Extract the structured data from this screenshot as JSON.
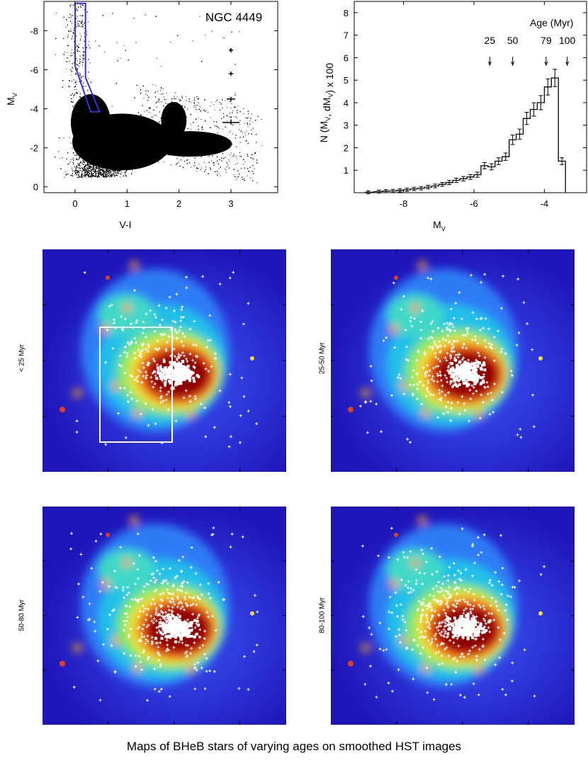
{
  "caption": "Maps of BHeB stars of varying ages on smoothed HST images",
  "chart_data": [
    {
      "type": "scatter",
      "title": "NGC 4449",
      "xlabel": "V-I",
      "ylabel": "M_V",
      "xlim": [
        -0.6,
        3.9
      ],
      "ylim": [
        0.3,
        -9.5
      ],
      "x_ticks": [
        "0",
        "1",
        "2",
        "3"
      ],
      "y_ticks": [
        "0",
        "-2",
        "-4",
        "-6",
        "-8"
      ],
      "x_tick_values": [
        0,
        1,
        2,
        3
      ],
      "y_tick_values": [
        0,
        -2,
        -4,
        -6,
        -8
      ],
      "selection_box_vertices": [
        [
          0.0,
          -9.4
        ],
        [
          0.2,
          -9.4
        ],
        [
          0.2,
          -5.6
        ],
        [
          0.47,
          -3.85
        ],
        [
          0.3,
          -3.85
        ],
        [
          0.0,
          -6.2
        ]
      ],
      "error_bars": [
        {
          "x": 3.0,
          "y": -7.0,
          "err": 0.05
        },
        {
          "x": 3.0,
          "y": -5.8,
          "err": 0.08
        },
        {
          "x": 3.0,
          "y": -4.5,
          "err": 0.15
        },
        {
          "x": 3.0,
          "y": -3.3,
          "err": 0.3
        }
      ]
    },
    {
      "type": "line",
      "xlabel": "M_V",
      "ylabel": "N (M_V, dM_V) x 100",
      "xlim": [
        -9.4,
        -2.8
      ],
      "ylim": [
        0,
        8.5
      ],
      "x_ticks": [
        "-8",
        "-6",
        "-4"
      ],
      "y_ticks": [
        "1",
        "2",
        "3",
        "4",
        "5",
        "6",
        "7",
        "8"
      ],
      "x_tick_values": [
        -8,
        -6,
        -4
      ],
      "y_tick_values": [
        1,
        2,
        3,
        4,
        5,
        6,
        7,
        8
      ],
      "legend_title": "Age (Myr)",
      "age_markers": [
        {
          "label": "25",
          "x": -5.55
        },
        {
          "label": "50",
          "x": -4.9
        },
        {
          "label": "79",
          "x": -3.95
        },
        {
          "label": "100",
          "x": -3.35
        }
      ],
      "x": [
        -9.0,
        -8.7,
        -8.5,
        -8.3,
        -8.1,
        -7.9,
        -7.7,
        -7.5,
        -7.3,
        -7.1,
        -6.9,
        -6.7,
        -6.5,
        -6.3,
        -6.1,
        -5.9,
        -5.7,
        -5.5,
        -5.3,
        -5.1,
        -4.9,
        -4.7,
        -4.5,
        -4.3,
        -4.1,
        -3.9,
        -3.7,
        -3.5
      ],
      "values": [
        0.02,
        0.05,
        0.07,
        0.08,
        0.1,
        0.13,
        0.17,
        0.2,
        0.25,
        0.3,
        0.37,
        0.45,
        0.55,
        0.62,
        0.7,
        0.8,
        1.2,
        1.15,
        1.4,
        1.6,
        2.35,
        2.6,
        3.3,
        3.7,
        4.0,
        4.7,
        5.1,
        1.4
      ]
    }
  ],
  "maps": [
    {
      "label": "< 25 Myr",
      "has_box": true
    },
    {
      "label": "25-50 Myr",
      "has_box": false
    },
    {
      "label": "50-80 Myr",
      "has_box": false
    },
    {
      "label": "80-100 Myr",
      "has_box": false
    }
  ]
}
